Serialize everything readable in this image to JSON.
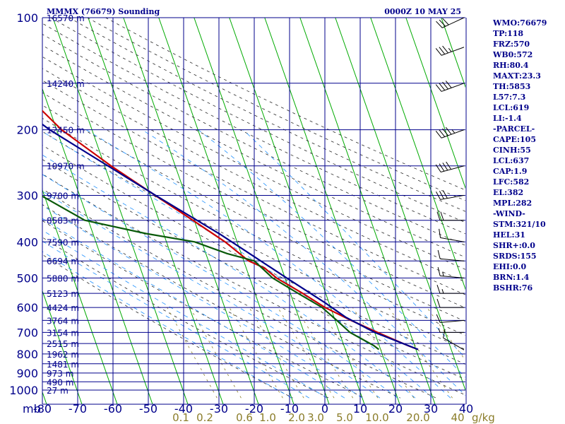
{
  "chart_data": {
    "type": "skew-t",
    "title_left": "MMMX (76679) Sounding",
    "title_right": "0000Z 10 MAY 25",
    "pressure_ticks": [
      100,
      200,
      300,
      400,
      500,
      600,
      700,
      800,
      900,
      1000
    ],
    "temperature_ticks": [
      "-80",
      "-70",
      "-60",
      "-50",
      "-40",
      "-30",
      "-20",
      "-10",
      "0",
      "10",
      "20",
      "30",
      "40"
    ],
    "temperature_axis_unit": "mb",
    "mixing_ratio_labels": [
      "0.1",
      "0.2",
      "0.6",
      "1.0",
      "2.0",
      "3.0",
      "5.0",
      "10.0",
      "20.0",
      "40"
    ],
    "mixing_ratio_unit": "g/kg",
    "height_labels": [
      {
        "p": 100,
        "text": "16570 m"
      },
      {
        "p": 150,
        "text": "14240 m"
      },
      {
        "p": 200,
        "text": "12450 m"
      },
      {
        "p": 250,
        "text": "10970 m"
      },
      {
        "p": 300,
        "text": "9700 m"
      },
      {
        "p": 350,
        "text": "8583 m"
      },
      {
        "p": 400,
        "text": "7590 m"
      },
      {
        "p": 450,
        "text": "6694 m"
      },
      {
        "p": 500,
        "text": "5880 m"
      },
      {
        "p": 550,
        "text": "5123 m"
      },
      {
        "p": 600,
        "text": "4424 m"
      },
      {
        "p": 650,
        "text": "3764 m"
      },
      {
        "p": 700,
        "text": "3154 m"
      },
      {
        "p": 750,
        "text": "2515 m"
      },
      {
        "p": 800,
        "text": "1962 m"
      },
      {
        "p": 850,
        "text": "1481 m"
      },
      {
        "p": 900,
        "text": "973 m"
      },
      {
        "p": 950,
        "text": "490 m"
      },
      {
        "p": 1000,
        "text": "27 m"
      }
    ],
    "series": [
      {
        "name": "Temperature",
        "color": "#cc0000",
        "points": [
          [
            778,
            20.6
          ],
          [
            760,
            18.2
          ],
          [
            700,
            10.8
          ],
          [
            650,
            4.5
          ],
          [
            600,
            -1.6
          ],
          [
            550,
            -6.5
          ],
          [
            500,
            -12.4
          ],
          [
            470,
            -14.8
          ],
          [
            450,
            -18.6
          ],
          [
            400,
            -23.4
          ],
          [
            350,
            -30.4
          ],
          [
            300,
            -38.6
          ],
          [
            250,
            -48.2
          ],
          [
            200,
            -58.6
          ],
          [
            150,
            -67.4
          ],
          [
            100,
            -78.6
          ],
          [
            93,
            -78.8
          ],
          [
            85,
            -76.0
          ]
        ]
      },
      {
        "name": "Dewpoint",
        "color": "#0a5a0a",
        "points": [
          [
            778,
            9.5
          ],
          [
            760,
            8.5
          ],
          [
            700,
            3.0
          ],
          [
            650,
            0.5
          ],
          [
            600,
            -2.4
          ],
          [
            550,
            -7.8
          ],
          [
            500,
            -13.5
          ],
          [
            450,
            -17.0
          ],
          [
            430,
            -24.0
          ],
          [
            400,
            -32.0
          ],
          [
            380,
            -45.0
          ],
          [
            350,
            -61.0
          ],
          [
            300,
            -71.0
          ],
          [
            250,
            -81.0
          ],
          [
            200,
            -90.0
          ],
          [
            150,
            -94.0
          ],
          [
            120,
            -94.0
          ]
        ]
      },
      {
        "name": "Parcel",
        "color": "#00008b",
        "points": [
          [
            778,
            20.6
          ],
          [
            700,
            10.0
          ],
          [
            637,
            3.3
          ],
          [
            582,
            -1.2
          ],
          [
            500,
            -9.5
          ],
          [
            400,
            -21.5
          ],
          [
            382,
            -24.0
          ],
          [
            300,
            -38.5
          ],
          [
            200,
            -62.0
          ],
          [
            150,
            -75.0
          ],
          [
            120,
            -85.0
          ]
        ]
      }
    ],
    "winds": [
      {
        "p": 780,
        "dir": 300,
        "spd": 10
      },
      {
        "p": 700,
        "dir": 270,
        "spd": 5
      },
      {
        "p": 650,
        "dir": 265,
        "spd": 10
      },
      {
        "p": 600,
        "dir": 270,
        "spd": 10
      },
      {
        "p": 550,
        "dir": 270,
        "spd": 15
      },
      {
        "p": 500,
        "dir": 275,
        "spd": 15
      },
      {
        "p": 450,
        "dir": 275,
        "spd": 10
      },
      {
        "p": 400,
        "dir": 280,
        "spd": 10
      },
      {
        "p": 350,
        "dir": 270,
        "spd": 20
      },
      {
        "p": 300,
        "dir": 260,
        "spd": 30
      },
      {
        "p": 250,
        "dir": 255,
        "spd": 40
      },
      {
        "p": 200,
        "dir": 250,
        "spd": 45
      },
      {
        "p": 150,
        "dir": 250,
        "spd": 40
      },
      {
        "p": 120,
        "dir": 250,
        "spd": 35
      },
      {
        "p": 100,
        "dir": 245,
        "spd": 30
      }
    ],
    "colors": {
      "frame": "#00008b",
      "isotherm": "#00aa00",
      "dry_adiabat": "#2a2a2a",
      "moist_adiabat": "#1e90ff",
      "mixing_ratio": "#8b7d2a"
    }
  },
  "indices": [
    "WMO:76679",
    "TP:118",
    "FRZ:570",
    "WB0:572",
    "RH:80.4",
    "MAXT:23.3",
    "TH:5853",
    "L57:7.3",
    "LCL:619",
    "LI:-1.4",
    "-PARCEL-",
    "CAPE:105",
    "CINH:55",
    "LCL:637",
    "CAP:1.9",
    "LFC:582",
    "EL:382",
    "MPL:282",
    "-WIND-",
    "STM:321/10",
    "HEL:31",
    "SHR+:0.0",
    "SRDS:155",
    "EHI:0.0",
    "BRN:1.4",
    "BSHR:76"
  ]
}
